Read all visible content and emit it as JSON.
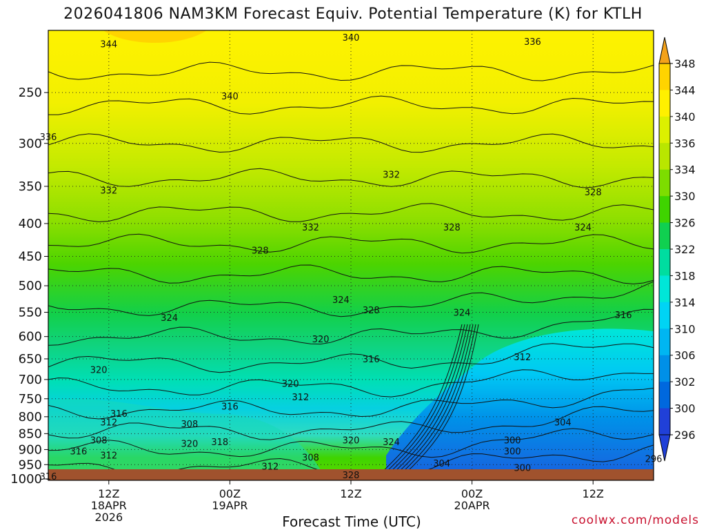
{
  "chart_data": {
    "type": "heatmap",
    "title": "2026041806 NAM3KM Forecast Equiv. Potential Temperature (K) for KTLH",
    "xlabel": "Forecast Time (UTC)",
    "ylabel": "",
    "credit": "coolwx.com/models",
    "x_ticks": [
      {
        "time": "2026-04-18 12Z",
        "lines": [
          "12Z",
          "18APR",
          "2026"
        ]
      },
      {
        "time": "2026-04-19 00Z",
        "lines": [
          "00Z",
          "19APR"
        ]
      },
      {
        "time": "2026-04-19 12Z",
        "lines": [
          "12Z"
        ]
      },
      {
        "time": "2026-04-20 00Z",
        "lines": [
          "00Z",
          "20APR"
        ]
      },
      {
        "time": "2026-04-20 12Z",
        "lines": [
          "12Z"
        ]
      }
    ],
    "y_ticks": [
      250,
      300,
      350,
      400,
      450,
      500,
      550,
      600,
      650,
      700,
      750,
      800,
      850,
      900,
      950,
      1000
    ],
    "ylim": [
      1005,
      200
    ],
    "y_scale": "log",
    "colorbar": {
      "labels": [
        348,
        344,
        340,
        336,
        334,
        330,
        326,
        322,
        318,
        314,
        310,
        306,
        302,
        300,
        296
      ],
      "colors": [
        "#f4a21a",
        "#ffd400",
        "#fff000",
        "#dcf000",
        "#b9e600",
        "#7ddd00",
        "#3fd400",
        "#10d050",
        "#00dda0",
        "#00e6d8",
        "#00d4f4",
        "#00b6f2",
        "#0090e8",
        "#0068de",
        "#2040d8"
      ]
    },
    "contour_labels": [
      {
        "time": "2026-04-18 12Z",
        "p": 210,
        "value": "344"
      },
      {
        "time": "2026-04-19 12Z",
        "p": 205,
        "value": "340"
      },
      {
        "time": "2026-04-20 06Z",
        "p": 208,
        "value": "336"
      },
      {
        "time": "2026-04-19 00Z",
        "p": 253,
        "value": "340"
      },
      {
        "time": "2026-04-18 06Z",
        "p": 293,
        "value": "336"
      },
      {
        "time": "2026-04-18 12Z",
        "p": 355,
        "value": "332"
      },
      {
        "time": "2026-04-19 16Z",
        "p": 335,
        "value": "332"
      },
      {
        "time": "2026-04-20 12Z",
        "p": 357,
        "value": "328"
      },
      {
        "time": "2026-04-19 08Z",
        "p": 405,
        "value": "332"
      },
      {
        "time": "2026-04-19 22Z",
        "p": 405,
        "value": "328"
      },
      {
        "time": "2026-04-20 11Z",
        "p": 405,
        "value": "324"
      },
      {
        "time": "2026-04-19 03Z",
        "p": 440,
        "value": "328"
      },
      {
        "time": "2026-04-19 11Z",
        "p": 525,
        "value": "324"
      },
      {
        "time": "2026-04-18 18Z",
        "p": 560,
        "value": "324"
      },
      {
        "time": "2026-04-19 14Z",
        "p": 545,
        "value": "328"
      },
      {
        "time": "2026-04-19 23Z",
        "p": 550,
        "value": "324"
      },
      {
        "time": "2026-04-20 15Z",
        "p": 555,
        "value": "316"
      },
      {
        "time": "2026-04-19 09Z",
        "p": 605,
        "value": "320"
      },
      {
        "time": "2026-04-19 14Z",
        "p": 650,
        "value": "316"
      },
      {
        "time": "2026-04-20 05Z",
        "p": 645,
        "value": "312"
      },
      {
        "time": "2026-04-18 11Z",
        "p": 675,
        "value": "320"
      },
      {
        "time": "2026-04-19 06Z",
        "p": 710,
        "value": "320"
      },
      {
        "time": "2026-04-19 07Z",
        "p": 745,
        "value": "312"
      },
      {
        "time": "2026-04-18 13Z",
        "p": 790,
        "value": "316"
      },
      {
        "time": "2026-04-19 00Z",
        "p": 770,
        "value": "316"
      },
      {
        "time": "2026-04-18 12Z",
        "p": 815,
        "value": "312"
      },
      {
        "time": "2026-04-18 20Z",
        "p": 820,
        "value": "308"
      },
      {
        "time": "2026-04-20 09Z",
        "p": 815,
        "value": "304"
      },
      {
        "time": "2026-04-18 11Z",
        "p": 870,
        "value": "308"
      },
      {
        "time": "2026-04-18 20Z",
        "p": 880,
        "value": "320"
      },
      {
        "time": "2026-04-18 23Z",
        "p": 875,
        "value": "318"
      },
      {
        "time": "2026-04-19 12Z",
        "p": 870,
        "value": "320"
      },
      {
        "time": "2026-04-19 16Z",
        "p": 875,
        "value": "324"
      },
      {
        "time": "2026-04-20 04Z",
        "p": 870,
        "value": "300"
      },
      {
        "time": "2026-04-18 09Z",
        "p": 905,
        "value": "316"
      },
      {
        "time": "2026-04-18 12Z",
        "p": 918,
        "value": "312"
      },
      {
        "time": "2026-04-20 04Z",
        "p": 905,
        "value": "300"
      },
      {
        "time": "2026-04-19 08Z",
        "p": 925,
        "value": "308"
      },
      {
        "time": "2026-04-20 18Z",
        "p": 930,
        "value": "296"
      },
      {
        "time": "2026-04-19 04Z",
        "p": 955,
        "value": "312"
      },
      {
        "time": "2026-04-19 21Z",
        "p": 945,
        "value": "304"
      },
      {
        "time": "2026-04-20 05Z",
        "p": 960,
        "value": "300"
      },
      {
        "time": "2026-04-18 06Z",
        "p": 990,
        "value": "316"
      },
      {
        "time": "2026-04-19 12Z",
        "p": 985,
        "value": "328"
      }
    ],
    "grid": true,
    "legend": "right"
  }
}
